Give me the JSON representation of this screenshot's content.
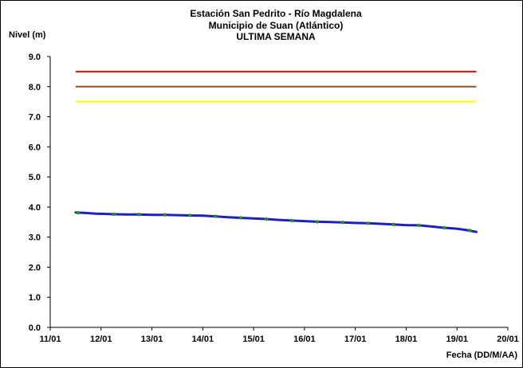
{
  "chart_data": {
    "type": "line",
    "title_lines": [
      "Estación San Pedrito - Río Magdalena",
      "Municipio de Suan (Atlántico)",
      "ULTIMA SEMANA"
    ],
    "ylabel": "Nivel (m)",
    "xlabel": "Fecha (DD/M/AA)",
    "ylim": [
      0,
      9
    ],
    "xlim": [
      0,
      9
    ],
    "yticks": [
      "0.0",
      "1.0",
      "2.0",
      "3.0",
      "4.0",
      "5.0",
      "6.0",
      "7.0",
      "8.0",
      "9.0"
    ],
    "xticks": [
      "11/01",
      "12/01",
      "13/01",
      "14/01",
      "15/01",
      "16/01",
      "17/01",
      "18/01",
      "19/01",
      "20/01"
    ],
    "grid": false,
    "threshold_lines": [
      {
        "value": 8.5,
        "color": "#ff0000",
        "x": [
          0.5,
          8.38
        ]
      },
      {
        "value": 8.0,
        "color": "#8b5a2b",
        "x": [
          0.5,
          8.38
        ]
      },
      {
        "value": 7.5,
        "color": "#ffff00",
        "x": [
          0.5,
          8.38
        ]
      }
    ],
    "series": [
      {
        "line_color": "#1f1fbf",
        "x": [
          0.5,
          0.7,
          0.9,
          1.1,
          1.3,
          1.5,
          1.75,
          2.0,
          2.25,
          2.5,
          2.75,
          3.0,
          3.25,
          3.5,
          3.75,
          4.0,
          4.25,
          4.5,
          4.75,
          5.0,
          5.25,
          5.5,
          5.75,
          6.0,
          6.25,
          6.5,
          6.75,
          7.0,
          7.25,
          7.5,
          7.75,
          8.0,
          8.2,
          8.38
        ],
        "y": [
          3.82,
          3.8,
          3.78,
          3.77,
          3.76,
          3.75,
          3.75,
          3.74,
          3.74,
          3.73,
          3.72,
          3.71,
          3.69,
          3.66,
          3.64,
          3.62,
          3.6,
          3.57,
          3.55,
          3.53,
          3.51,
          3.5,
          3.49,
          3.47,
          3.46,
          3.44,
          3.42,
          3.4,
          3.39,
          3.35,
          3.31,
          3.28,
          3.23,
          3.17
        ]
      }
    ],
    "marker_color": "#2e8b2e",
    "markers": {
      "x": [
        0.55,
        1.25,
        1.75,
        2.25,
        2.75,
        3.25,
        3.75,
        4.25,
        4.75,
        5.25,
        5.75,
        6.25,
        6.75,
        7.25,
        7.75,
        8.25
      ],
      "y": [
        3.81,
        3.76,
        3.75,
        3.74,
        3.72,
        3.69,
        3.64,
        3.6,
        3.55,
        3.51,
        3.49,
        3.46,
        3.42,
        3.39,
        3.31,
        3.22
      ]
    }
  }
}
